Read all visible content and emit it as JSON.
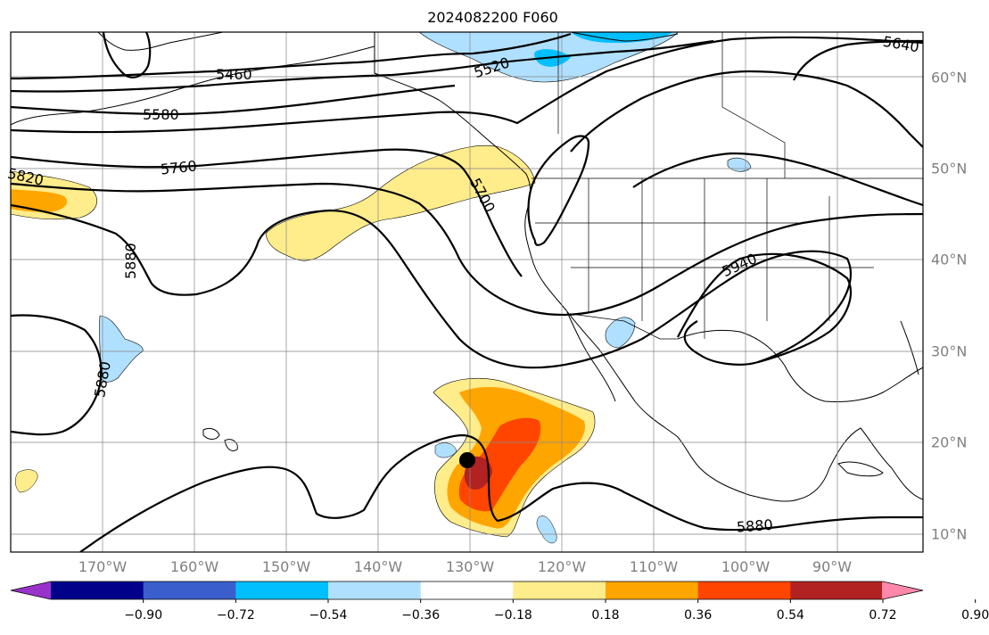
{
  "title": "2024082200 F060",
  "lon_labels": [
    "170°W",
    "160°W",
    "150°W",
    "140°W",
    "130°W",
    "120°W",
    "110°W",
    "100°W",
    "90°W"
  ],
  "lat_labels": [
    "60°N",
    "50°N",
    "40°N",
    "30°N",
    "20°N",
    "10°N"
  ],
  "contour_labels": [
    "5460",
    "5520",
    "5640",
    "5580",
    "5760",
    "5820",
    "5700",
    "5880",
    "5880",
    "5940",
    "5880"
  ],
  "colorbar": {
    "ticks": [
      "−0.90",
      "−0.72",
      "−0.54",
      "−0.36",
      "−0.18",
      "0.18",
      "0.36",
      "0.54",
      "0.72",
      "0.90"
    ],
    "colors": [
      "#9932cc",
      "#00008b",
      "#3a5fcd",
      "#00bfff",
      "#b0e0ff",
      "#ffffff",
      "#ffec8b",
      "#ffa500",
      "#ff4500",
      "#b22222",
      "#ff88aa"
    ]
  },
  "colors": {
    "shade_light_yellow": "#ffec8b",
    "shade_orange": "#ffa500",
    "shade_red_orange": "#ff4500",
    "shade_dark_red": "#b22222",
    "shade_light_blue": "#b0e0ff",
    "shade_blue": "#00bfff"
  },
  "storm_marker": "black-dot"
}
